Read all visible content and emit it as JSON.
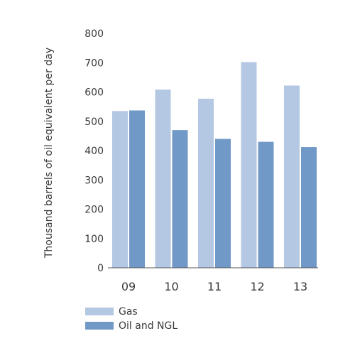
{
  "colors": {
    "gas": "#b4c7e3",
    "oil_ngl": "#7199c8",
    "axis": "#555555",
    "text": "#3a3a3a"
  },
  "chart_data": {
    "type": "bar",
    "title": "",
    "xlabel": "",
    "ylabel": "Thousand barrels of oil equivalent per day",
    "ylim": [
      0,
      800
    ],
    "yticks": [
      0,
      100,
      200,
      300,
      400,
      500,
      600,
      700,
      800
    ],
    "grid": false,
    "legend_position": "bottom-left",
    "categories": [
      "09",
      "10",
      "11",
      "12",
      "13"
    ],
    "series": [
      {
        "name": "Gas",
        "values": [
          535,
          608,
          577,
          702,
          622
        ]
      },
      {
        "name": "Oil and NGL",
        "values": [
          537,
          470,
          440,
          430,
          412
        ]
      }
    ]
  }
}
